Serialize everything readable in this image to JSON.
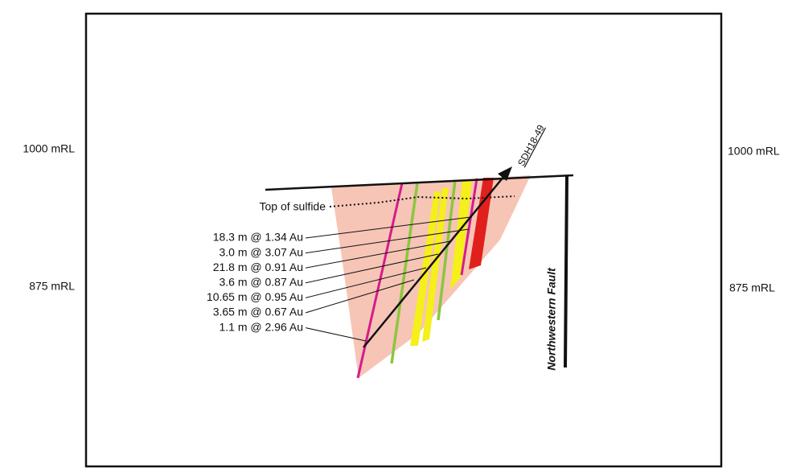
{
  "elevations": {
    "left": [
      "1000 mRL",
      "875 mRL"
    ],
    "right": [
      "1000 mRL",
      "875 mRL"
    ]
  },
  "drill_hole": "SDH18-49",
  "top_of_sulfide": "Top of sulfide",
  "fault": "Northwestern Fault",
  "intercepts": [
    "18.3 m @ 1.34 Au",
    "3.0 m @ 3.07 Au",
    "21.8 m @ 0.91 Au",
    "3.6 m @ 0.87 Au",
    "10.65 m @ 0.95 Au",
    "3.65 m @ 0.67 Au",
    "1.1 m @ 2.96 Au"
  ]
}
